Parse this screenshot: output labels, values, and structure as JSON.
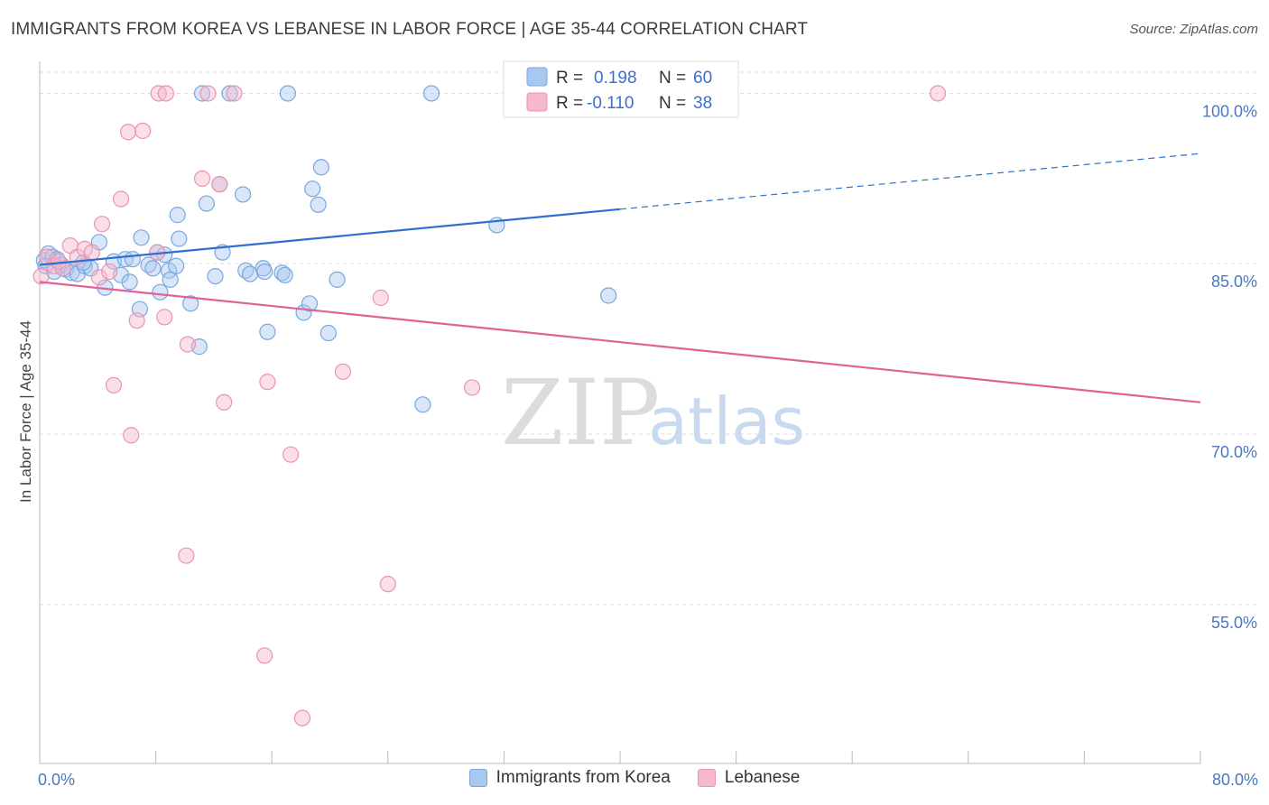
{
  "title": "IMMIGRANTS FROM KOREA VS LEBANESE IN LABOR FORCE | AGE 35-44 CORRELATION CHART",
  "source": "Source: ZipAtlas.com",
  "watermark": {
    "zip": "ZIP",
    "atlas": "atlas"
  },
  "colors": {
    "korea_fill": "#a9c8ef",
    "korea_stroke": "#7aa7e0",
    "korea_line": "#2f6fcf",
    "leb_fill": "#f6b8cc",
    "leb_stroke": "#ee92b0",
    "leb_line": "#e06394",
    "grid": "#dddddd",
    "tick_text": "#4a78c2"
  },
  "legend": {
    "korea": {
      "r_label": "R =",
      "r_value": "0.198",
      "n_label": "N =",
      "n_value": "60"
    },
    "lebanese": {
      "r_label": "R =",
      "r_value": "-0.110",
      "n_label": "N =",
      "n_value": "38"
    }
  },
  "bottom_legend": [
    "Immigrants from Korea",
    "Lebanese"
  ],
  "chart_data": {
    "type": "scatter",
    "title": "IMMIGRANTS FROM KOREA VS LEBANESE IN LABOR FORCE | AGE 35-44 CORRELATION CHART",
    "xlabel": "",
    "ylabel": "In Labor Force | Age 35-44",
    "xlim": [
      0,
      80
    ],
    "ylim": [
      41,
      102.5
    ],
    "x_ticks": [
      0,
      8,
      16,
      24,
      32,
      40,
      48,
      56,
      64,
      72,
      80
    ],
    "x_tick_labels": {
      "0": "0.0%",
      "80": "80.0%"
    },
    "y_ticks": [
      100,
      85,
      70,
      55
    ],
    "y_tick_labels": [
      "100.0%",
      "85.0%",
      "70.0%",
      "55.0%"
    ],
    "grid": true,
    "series": [
      {
        "name": "Immigrants from Korea",
        "r": 0.198,
        "n": 60,
        "trend": {
          "x0": 0,
          "y0": 84.9,
          "x1": 40,
          "y1": 89.8,
          "dash_to_x": 80,
          "dash_to_y": 94.7
        },
        "points": [
          [
            0.3,
            85.3
          ],
          [
            0.6,
            85.9
          ],
          [
            0.9,
            85.6
          ],
          [
            1.2,
            85.4
          ],
          [
            1.5,
            84.9
          ],
          [
            1.8,
            84.5
          ],
          [
            2.2,
            84.2
          ],
          [
            2.6,
            84.1
          ],
          [
            3.1,
            84.8
          ],
          [
            3.5,
            84.6
          ],
          [
            4.1,
            86.9
          ],
          [
            4.5,
            82.9
          ],
          [
            5.1,
            85.2
          ],
          [
            5.6,
            84.0
          ],
          [
            5.9,
            85.4
          ],
          [
            6.4,
            85.4
          ],
          [
            6.2,
            83.4
          ],
          [
            6.9,
            81.0
          ],
          [
            7.0,
            87.3
          ],
          [
            7.5,
            84.9
          ],
          [
            8.1,
            86.0
          ],
          [
            8.3,
            82.5
          ],
          [
            8.6,
            85.8
          ],
          [
            8.9,
            84.4
          ],
          [
            9.0,
            83.6
          ],
          [
            9.4,
            84.8
          ],
          [
            9.5,
            89.3
          ],
          [
            9.6,
            87.2
          ],
          [
            10.4,
            81.5
          ],
          [
            11.0,
            77.7
          ],
          [
            11.5,
            90.3
          ],
          [
            12.4,
            92.0
          ],
          [
            12.6,
            86.0
          ],
          [
            13.1,
            100.0
          ],
          [
            11.2,
            100.0
          ],
          [
            14.0,
            91.1
          ],
          [
            14.2,
            84.4
          ],
          [
            14.5,
            84.1
          ],
          [
            15.4,
            84.6
          ],
          [
            15.5,
            84.3
          ],
          [
            15.7,
            79.0
          ],
          [
            16.7,
            84.2
          ],
          [
            16.9,
            84.0
          ],
          [
            17.1,
            100.0
          ],
          [
            18.2,
            80.7
          ],
          [
            18.6,
            81.5
          ],
          [
            18.8,
            91.6
          ],
          [
            19.2,
            90.2
          ],
          [
            19.4,
            93.5
          ],
          [
            19.9,
            78.9
          ],
          [
            20.5,
            83.6
          ],
          [
            26.4,
            72.6
          ],
          [
            27.0,
            100.0
          ],
          [
            31.5,
            88.4
          ],
          [
            39.2,
            82.2
          ],
          [
            0.4,
            84.8
          ],
          [
            1.0,
            84.3
          ],
          [
            3.0,
            85.1
          ],
          [
            7.8,
            84.6
          ],
          [
            12.1,
            83.9
          ]
        ]
      },
      {
        "name": "Lebanese",
        "r": -0.11,
        "n": 38,
        "trend": {
          "x0": 0,
          "y0": 83.4,
          "x1": 80,
          "y1": 72.8
        },
        "points": [
          [
            0.1,
            83.9
          ],
          [
            0.5,
            85.6
          ],
          [
            1.0,
            84.8
          ],
          [
            1.6,
            84.6
          ],
          [
            2.1,
            86.6
          ],
          [
            2.6,
            85.6
          ],
          [
            3.1,
            86.3
          ],
          [
            3.6,
            86.0
          ],
          [
            4.1,
            83.8
          ],
          [
            4.3,
            88.5
          ],
          [
            4.8,
            84.3
          ],
          [
            5.1,
            74.3
          ],
          [
            5.6,
            90.7
          ],
          [
            6.1,
            96.6
          ],
          [
            6.3,
            69.9
          ],
          [
            6.7,
            80.0
          ],
          [
            7.1,
            96.7
          ],
          [
            8.1,
            86.0
          ],
          [
            8.2,
            100.0
          ],
          [
            8.6,
            80.3
          ],
          [
            8.7,
            100.0
          ],
          [
            10.1,
            59.3
          ],
          [
            10.2,
            77.9
          ],
          [
            11.2,
            92.5
          ],
          [
            11.6,
            100.0
          ],
          [
            12.4,
            92.0
          ],
          [
            12.7,
            72.8
          ],
          [
            13.4,
            100.0
          ],
          [
            15.5,
            50.5
          ],
          [
            15.7,
            74.6
          ],
          [
            17.3,
            68.2
          ],
          [
            18.1,
            45.0
          ],
          [
            20.9,
            75.5
          ],
          [
            23.5,
            82.0
          ],
          [
            24.0,
            56.8
          ],
          [
            29.8,
            74.1
          ],
          [
            61.9,
            100.0
          ],
          [
            1.3,
            85.2
          ]
        ]
      }
    ]
  }
}
